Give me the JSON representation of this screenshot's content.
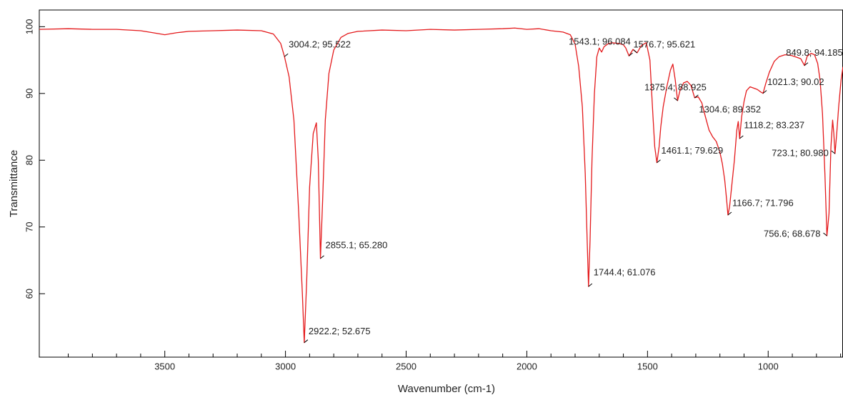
{
  "chart_data": {
    "type": "line",
    "xlabel": "Wavenumber (cm-1)",
    "ylabel": "Transmittance",
    "xlim": [
      4020,
      690
    ],
    "ylim": [
      50.5,
      102.5
    ],
    "xticks": [
      3500,
      3000,
      2500,
      2000,
      1500,
      1000
    ],
    "xminorticks": [
      3900,
      3800,
      3700,
      3600,
      3400,
      3300,
      3200,
      3100,
      2900,
      2800,
      2700,
      2600,
      2400,
      2300,
      2200,
      2100,
      1900,
      1800,
      1700,
      1600,
      1400,
      1300,
      1200,
      1100,
      900,
      800,
      700
    ],
    "yticks": [
      60,
      70,
      80,
      90,
      100
    ],
    "x": [
      4020,
      3900,
      3800,
      3700,
      3600,
      3550,
      3500,
      3450,
      3400,
      3300,
      3200,
      3100,
      3050,
      3020,
      3004.2,
      2985,
      2965,
      2945,
      2930,
      2922.2,
      2912,
      2900,
      2885,
      2872,
      2864,
      2855.1,
      2846,
      2835,
      2820,
      2800,
      2770,
      2740,
      2700,
      2600,
      2500,
      2400,
      2300,
      2200,
      2100,
      2050,
      2000,
      1950,
      1900,
      1850,
      1820,
      1800,
      1785,
      1770,
      1758,
      1750,
      1744.4,
      1738,
      1730,
      1720,
      1710,
      1700,
      1690,
      1680,
      1665,
      1650,
      1620,
      1600,
      1590,
      1576.7,
      1560,
      1543.1,
      1525,
      1505,
      1490,
      1478,
      1470,
      1461.1,
      1452,
      1445,
      1435,
      1420,
      1405,
      1395,
      1385,
      1375.4,
      1365,
      1350,
      1335,
      1320,
      1304.6,
      1290,
      1275,
      1260,
      1245,
      1230,
      1215,
      1200,
      1190,
      1180,
      1172,
      1166.7,
      1160,
      1150,
      1140,
      1130,
      1124,
      1118.2,
      1110,
      1100,
      1090,
      1075,
      1060,
      1045,
      1030,
      1021.3,
      1010,
      995,
      975,
      955,
      930,
      905,
      880,
      865,
      849.8,
      838,
      822,
      808,
      795,
      785,
      775,
      765,
      756.6,
      748,
      740,
      733,
      728,
      723.1,
      716,
      708,
      698,
      690
    ],
    "y": [
      99.6,
      99.7,
      99.6,
      99.6,
      99.4,
      99.1,
      98.8,
      99.1,
      99.3,
      99.4,
      99.5,
      99.4,
      98.9,
      97.5,
      95.522,
      92.5,
      86,
      72,
      60,
      52.675,
      62,
      76,
      84,
      85.6,
      80,
      65.28,
      74,
      86,
      93,
      96.5,
      98.4,
      99,
      99.3,
      99.5,
      99.4,
      99.6,
      99.5,
      99.6,
      99.7,
      99.8,
      99.6,
      99.7,
      99.4,
      99.2,
      98.8,
      97.4,
      94,
      88,
      78,
      68,
      61.076,
      68,
      80,
      90,
      95.5,
      96.8,
      96.2,
      97,
      97.4,
      97.6,
      97.5,
      97.3,
      96.8,
      95.621,
      96.6,
      96.084,
      97.2,
      97.6,
      95,
      87,
      82,
      79.629,
      82,
      85,
      88,
      91,
      93.5,
      94.4,
      92,
      88.925,
      90.5,
      91.6,
      91.8,
      91.2,
      89.352,
      89.5,
      88.6,
      86.5,
      84.5,
      83.5,
      82.8,
      81.2,
      79.5,
      77,
      74,
      71.796,
      73,
      76.5,
      80,
      84.5,
      85.8,
      83.237,
      86.5,
      88.8,
      90.4,
      91,
      90.8,
      90.6,
      90.2,
      90.02,
      91.5,
      93.2,
      94.8,
      95.5,
      95.8,
      95.7,
      95.4,
      95.2,
      94.185,
      95.6,
      96,
      95.8,
      94.5,
      92,
      87,
      78,
      68.678,
      72,
      82,
      86,
      84,
      80.98,
      84,
      88,
      92,
      94
    ],
    "color": "#e41a1c",
    "annotations": [
      {
        "x": 3004.2,
        "y": 95.522,
        "label": "3004.2; 95.522"
      },
      {
        "x": 2855.1,
        "y": 65.28,
        "label": "2855.1; 65.280"
      },
      {
        "x": 2922.2,
        "y": 52.675,
        "label": "2922.2; 52.675"
      },
      {
        "x": 1543.1,
        "y": 96.084,
        "label": "1543.1; 96.084"
      },
      {
        "x": 1576.7,
        "y": 95.621,
        "label": "1576.7; 95.621"
      },
      {
        "x": 1744.4,
        "y": 61.076,
        "label": "1744.4; 61.076"
      },
      {
        "x": 1375.4,
        "y": 88.925,
        "label": "1375.4; 88.925"
      },
      {
        "x": 1304.6,
        "y": 89.352,
        "label": "1304.6; 89.352"
      },
      {
        "x": 1461.1,
        "y": 79.629,
        "label": "1461.1; 79.629"
      },
      {
        "x": 1166.7,
        "y": 71.796,
        "label": "1166.7; 71.796"
      },
      {
        "x": 1118.2,
        "y": 83.237,
        "label": "1118.2; 83.237"
      },
      {
        "x": 1021.3,
        "y": 90.02,
        "label": "1021.3; 90.02"
      },
      {
        "x": 849.8,
        "y": 94.185,
        "label": "849.8; 94.185"
      },
      {
        "x": 723.1,
        "y": 80.98,
        "label": "723.1; 80.980"
      },
      {
        "x": 756.6,
        "y": 68.678,
        "label": "756.6; 68.678"
      }
    ]
  }
}
